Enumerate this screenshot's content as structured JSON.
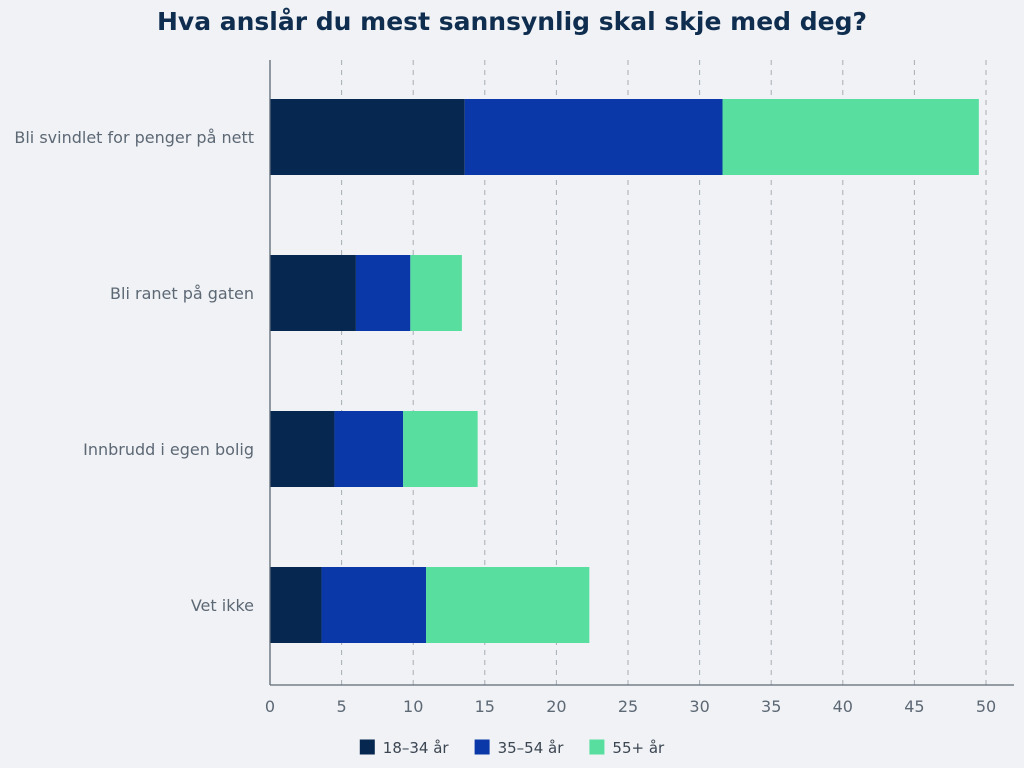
{
  "chart_data": {
    "type": "bar",
    "orientation": "horizontal",
    "stacked": true,
    "title": "Hva anslår du mest sannsynlig skal skje med deg?",
    "categories": [
      "Bli svindlet for penger på nett",
      "Bli ranet på gaten",
      "Innbrudd i egen bolig",
      "Vet ikke"
    ],
    "series": [
      {
        "name": "18–34 år",
        "color": "#06274f",
        "values": [
          13.6,
          6.0,
          4.5,
          3.6
        ]
      },
      {
        "name": "35–54 år",
        "color": "#0a38a8",
        "values": [
          18.0,
          3.8,
          4.8,
          7.3
        ]
      },
      {
        "name": "55+ år",
        "color": "#58de9f",
        "values": [
          17.9,
          3.6,
          5.2,
          11.4
        ]
      }
    ],
    "xlim": [
      0,
      50
    ],
    "xticks": [
      "0",
      "5",
      "10",
      "15",
      "20",
      "25",
      "30",
      "35",
      "40",
      "45",
      "50"
    ],
    "grid": "vertical-dashed",
    "legend": "bottom-center"
  }
}
